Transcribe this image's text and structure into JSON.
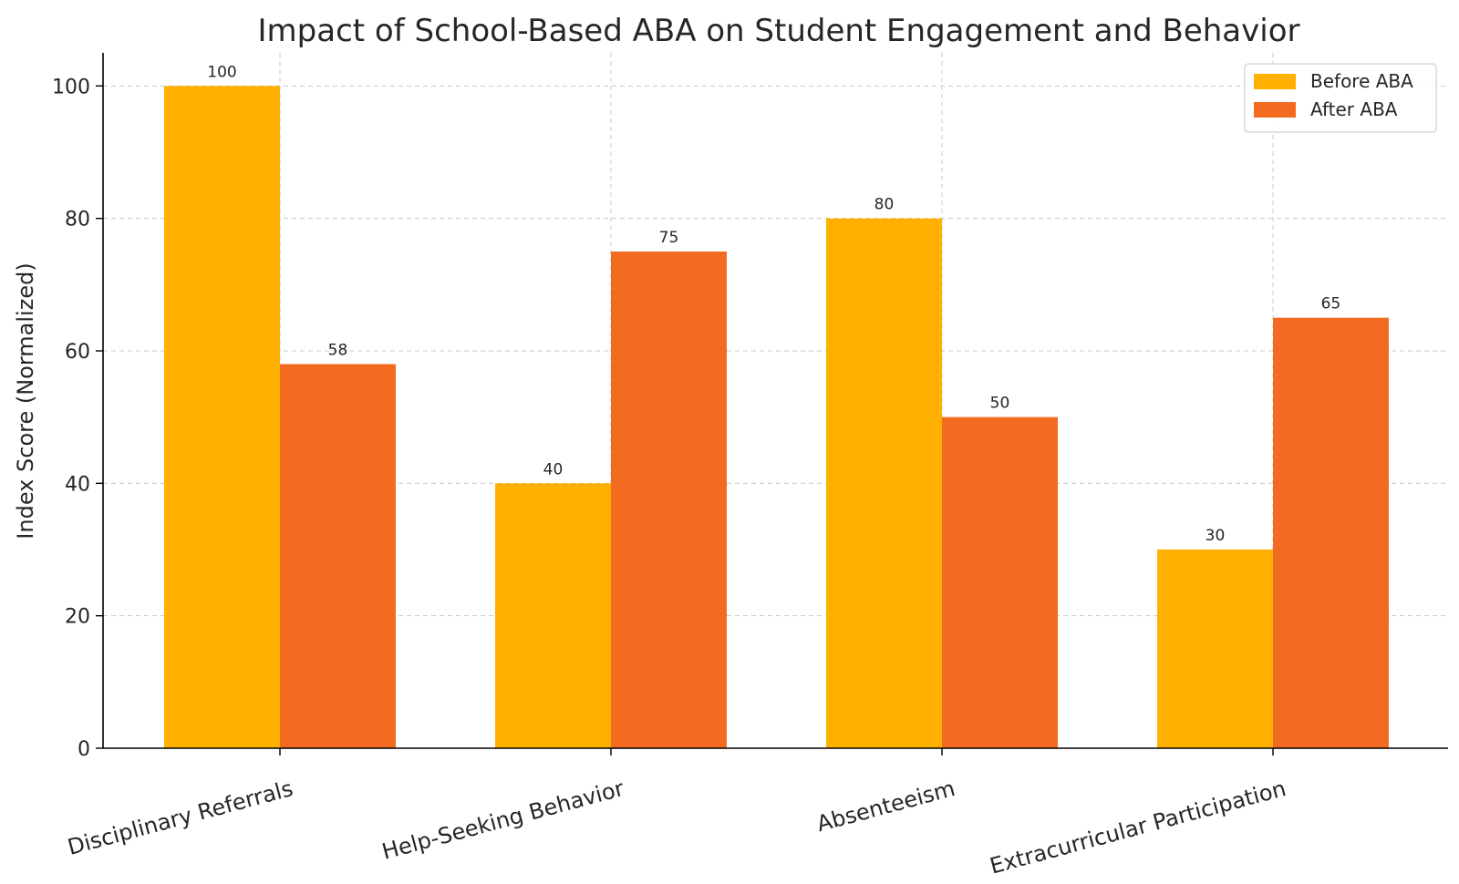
{
  "chart_data": {
    "type": "bar",
    "title": "Impact of School-Based ABA on Student Engagement and Behavior",
    "xlabel": "",
    "ylabel": "Index Score (Normalized)",
    "categories": [
      "Disciplinary Referrals",
      "Help-Seeking Behavior",
      "Absenteeism",
      "Extracurricular Participation"
    ],
    "series": [
      {
        "name": "Before ABA",
        "color": "#FFB000",
        "values": [
          100,
          40,
          80,
          30
        ]
      },
      {
        "name": "After ABA",
        "color": "#F26B21",
        "values": [
          58,
          75,
          50,
          65
        ]
      }
    ],
    "ylim": [
      0,
      105
    ],
    "yticks": [
      0,
      20,
      40,
      60,
      80,
      100
    ],
    "grid": true,
    "legend_position": "top-right"
  }
}
